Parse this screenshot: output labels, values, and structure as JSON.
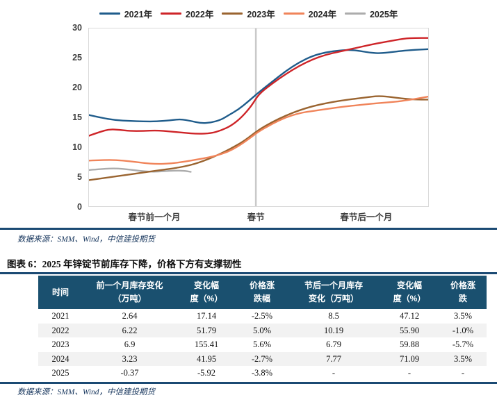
{
  "figure": {
    "caption": "图表 6：2025 年锌锭节前库存下降，价格下方有支撑韧性",
    "source_top": "数据来源：SMM、Wind，中信建投期货",
    "source_bottom": "数据来源：SMM、Wind，中信建投期货"
  },
  "colors": {
    "rule": "#1b4a73",
    "table_header_bg": "#1a506f",
    "table_stripe": "#f2f2f2",
    "source_text": "#17365d",
    "festival_line": "#c9c9c9",
    "plot_border": "#d9d9d9"
  },
  "chart_data": {
    "type": "line",
    "title": "",
    "xlabel": "",
    "ylabel": "",
    "ylim": [
      0,
      30
    ],
    "y_ticks": [
      0,
      5,
      10,
      15,
      20,
      25,
      30
    ],
    "grid": false,
    "legend_position": "top",
    "x_axis_labels": [
      {
        "text": "春节前一个月",
        "pos": 0.194
      },
      {
        "text": "春节",
        "pos": 0.492
      },
      {
        "text": "春节后一个月",
        "pos": 0.816
      }
    ],
    "festival_divider_pos": 0.492,
    "x_unit": "fraction of window: one month before Spring Festival -> Spring Festival -> one month after",
    "series": [
      {
        "name": "2025年",
        "color": "#acacac",
        "points": [
          [
            0,
            6.1
          ],
          [
            0.04,
            6.3
          ],
          [
            0.08,
            6.4
          ],
          [
            0.12,
            6.2
          ],
          [
            0.16,
            5.9
          ],
          [
            0.19,
            5.8
          ],
          [
            0.22,
            5.9
          ],
          [
            0.25,
            6.0
          ],
          [
            0.28,
            6.0
          ],
          [
            0.3,
            5.8
          ]
        ]
      },
      {
        "name": "2023年",
        "color": "#9a6430",
        "points": [
          [
            0,
            4.4
          ],
          [
            0.05,
            4.8
          ],
          [
            0.1,
            5.2
          ],
          [
            0.15,
            5.6
          ],
          [
            0.2,
            6.0
          ],
          [
            0.25,
            6.4
          ],
          [
            0.28,
            6.7
          ],
          [
            0.31,
            7.1
          ],
          [
            0.34,
            7.7
          ],
          [
            0.37,
            8.4
          ],
          [
            0.4,
            9.2
          ],
          [
            0.43,
            10.1
          ],
          [
            0.46,
            11.1
          ],
          [
            0.5,
            12.9
          ],
          [
            0.54,
            14.2
          ],
          [
            0.58,
            15.3
          ],
          [
            0.62,
            16.2
          ],
          [
            0.66,
            16.9
          ],
          [
            0.7,
            17.4
          ],
          [
            0.74,
            17.8
          ],
          [
            0.78,
            18.1
          ],
          [
            0.82,
            18.4
          ],
          [
            0.85,
            18.6
          ],
          [
            0.88,
            18.5
          ],
          [
            0.92,
            18.2
          ],
          [
            0.96,
            18.0
          ],
          [
            1.0,
            18.0
          ]
        ]
      },
      {
        "name": "2024年",
        "color": "#f0845a",
        "points": [
          [
            0,
            7.7
          ],
          [
            0.04,
            7.8
          ],
          [
            0.08,
            7.8
          ],
          [
            0.12,
            7.6
          ],
          [
            0.16,
            7.3
          ],
          [
            0.2,
            7.1
          ],
          [
            0.24,
            7.2
          ],
          [
            0.28,
            7.5
          ],
          [
            0.32,
            7.9
          ],
          [
            0.35,
            8.2
          ],
          [
            0.38,
            8.6
          ],
          [
            0.41,
            9.2
          ],
          [
            0.44,
            10.1
          ],
          [
            0.47,
            11.3
          ],
          [
            0.5,
            12.6
          ],
          [
            0.54,
            13.9
          ],
          [
            0.58,
            15.0
          ],
          [
            0.62,
            15.7
          ],
          [
            0.65,
            16.0
          ],
          [
            0.7,
            16.4
          ],
          [
            0.75,
            16.8
          ],
          [
            0.8,
            17.1
          ],
          [
            0.85,
            17.4
          ],
          [
            0.9,
            17.6
          ],
          [
            0.94,
            17.9
          ],
          [
            0.97,
            18.2
          ],
          [
            1.0,
            18.5
          ]
        ]
      },
      {
        "name": "2021年",
        "color": "#1f5c8b",
        "points": [
          [
            0,
            15.4
          ],
          [
            0.04,
            14.9
          ],
          [
            0.08,
            14.5
          ],
          [
            0.12,
            14.4
          ],
          [
            0.16,
            14.3
          ],
          [
            0.2,
            14.3
          ],
          [
            0.24,
            14.5
          ],
          [
            0.27,
            14.7
          ],
          [
            0.3,
            14.4
          ],
          [
            0.33,
            14.0
          ],
          [
            0.36,
            14.1
          ],
          [
            0.39,
            14.6
          ],
          [
            0.41,
            15.3
          ],
          [
            0.44,
            16.3
          ],
          [
            0.47,
            17.7
          ],
          [
            0.5,
            19.2
          ],
          [
            0.54,
            21.0
          ],
          [
            0.58,
            22.8
          ],
          [
            0.62,
            24.3
          ],
          [
            0.66,
            25.4
          ],
          [
            0.7,
            26.0
          ],
          [
            0.74,
            26.3
          ],
          [
            0.77,
            26.4
          ],
          [
            0.8,
            26.2
          ],
          [
            0.83,
            25.9
          ],
          [
            0.86,
            25.8
          ],
          [
            0.89,
            26.0
          ],
          [
            0.92,
            26.2
          ],
          [
            0.96,
            26.4
          ],
          [
            1.0,
            26.5
          ]
        ]
      },
      {
        "name": "2022年",
        "color": "#ce2428",
        "points": [
          [
            0,
            11.9
          ],
          [
            0.03,
            12.5
          ],
          [
            0.06,
            13.0
          ],
          [
            0.09,
            12.9
          ],
          [
            0.12,
            12.7
          ],
          [
            0.16,
            12.7
          ],
          [
            0.2,
            12.8
          ],
          [
            0.24,
            12.6
          ],
          [
            0.28,
            12.4
          ],
          [
            0.32,
            12.2
          ],
          [
            0.36,
            12.3
          ],
          [
            0.39,
            12.8
          ],
          [
            0.42,
            13.6
          ],
          [
            0.45,
            15.0
          ],
          [
            0.48,
            17.0
          ],
          [
            0.5,
            18.9
          ],
          [
            0.54,
            20.7
          ],
          [
            0.58,
            22.3
          ],
          [
            0.62,
            23.7
          ],
          [
            0.66,
            24.8
          ],
          [
            0.7,
            25.6
          ],
          [
            0.74,
            26.1
          ],
          [
            0.77,
            26.5
          ],
          [
            0.81,
            27.0
          ],
          [
            0.85,
            27.5
          ],
          [
            0.89,
            27.9
          ],
          [
            0.93,
            28.3
          ],
          [
            0.96,
            28.4
          ],
          [
            1.0,
            28.4
          ]
        ]
      }
    ],
    "legend_order": [
      "2021年",
      "2022年",
      "2023年",
      "2024年",
      "2025年"
    ]
  },
  "table": {
    "headers": [
      [
        "时间"
      ],
      [
        "前一个月库存变化",
        "（万吨）"
      ],
      [
        "变化幅",
        "度（%）"
      ],
      [
        "价格涨",
        "跌幅"
      ],
      [
        "节后一个月库存",
        "变化（万吨）"
      ],
      [
        "变化幅",
        "度（%）"
      ],
      [
        "价格涨",
        "跌"
      ]
    ],
    "rows": [
      [
        "2021",
        "2.64",
        "17.14",
        "-2.5%",
        "8.5",
        "47.12",
        "3.5%"
      ],
      [
        "2022",
        "6.22",
        "51.79",
        "5.0%",
        "10.19",
        "55.90",
        "-1.0%"
      ],
      [
        "2023",
        "6.9",
        "155.41",
        "5.6%",
        "6.79",
        "59.88",
        "-5.7%"
      ],
      [
        "2024",
        "3.23",
        "41.95",
        "-2.7%",
        "7.77",
        "71.09",
        "3.5%"
      ],
      [
        "2025",
        "-0.37",
        "-5.92",
        "-3.8%",
        "-",
        "-",
        "-"
      ]
    ],
    "striped_rows": [
      1,
      3
    ]
  }
}
